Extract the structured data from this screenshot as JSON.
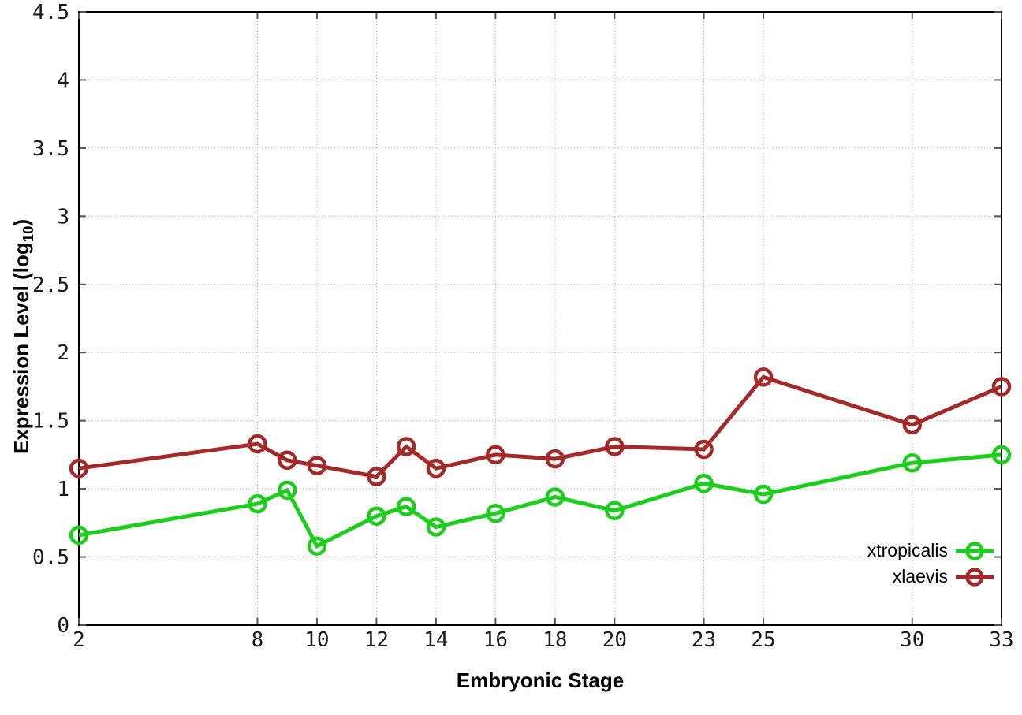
{
  "chart_data": {
    "type": "line",
    "title": "",
    "xlabel": "Embryonic Stage",
    "ylabel": "Expression Level (log10)",
    "ylabel_prefix": "Expression Level (log",
    "ylabel_sub": "10",
    "ylabel_suffix": ")",
    "xlim": [
      2,
      33
    ],
    "ylim": [
      0,
      4.5
    ],
    "grid": true,
    "grid_style": "dotted",
    "legend_position": "bottom-right-inside",
    "xticks": [
      2,
      8,
      10,
      12,
      14,
      16,
      18,
      20,
      23,
      25,
      30,
      33
    ],
    "yticks": [
      0,
      0.5,
      1,
      1.5,
      2,
      2.5,
      3,
      3.5,
      4,
      4.5
    ],
    "ytick_labels": [
      "0",
      "0.5",
      "1",
      "1.5",
      "2",
      "2.5",
      "3",
      "3.5",
      "4",
      "4.5"
    ],
    "x": [
      2,
      8,
      9,
      10,
      12,
      13,
      14,
      16,
      18,
      20,
      23,
      25,
      30,
      33
    ],
    "series": [
      {
        "name": "xtropicalis",
        "color": "#1bce1b",
        "marker": "open-circle",
        "values": [
          0.66,
          0.89,
          0.99,
          0.58,
          0.8,
          0.87,
          0.72,
          0.82,
          0.94,
          0.84,
          1.04,
          0.96,
          1.19,
          1.25
        ]
      },
      {
        "name": "xlaevis",
        "color": "#a42a2a",
        "marker": "open-circle",
        "values": [
          1.15,
          1.33,
          1.21,
          1.17,
          1.09,
          1.31,
          1.15,
          1.25,
          1.22,
          1.31,
          1.29,
          1.82,
          1.47,
          1.75
        ]
      }
    ],
    "colors": {
      "background": "#ffffff",
      "border": "#000000",
      "grid": "#b3b3b3",
      "tick": "#555555",
      "text": "#1a1a1a"
    }
  }
}
